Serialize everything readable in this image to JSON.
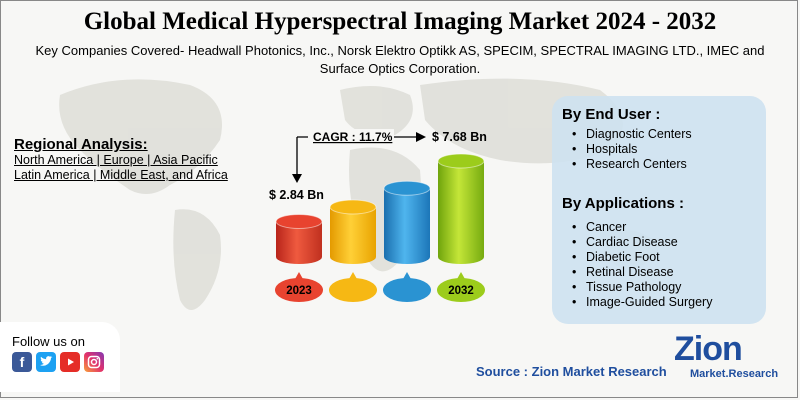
{
  "title": "Global Medical Hyperspectral Imaging Market 2024 - 2032",
  "subtitle": "Key Companies Covered- Headwall Photonics, Inc., Norsk Elektro Optikk AS, SPECIM, SPECTRAL IMAGING LTD., IMEC and Surface Optics Corporation.",
  "regional": {
    "title": "Regional Analysis:",
    "lines": [
      "North America | Europe | Asia Pacific",
      "Latin America | Middle East, and Africa"
    ]
  },
  "chart_data": {
    "type": "bar",
    "categories": [
      "2023",
      "",
      "",
      "2032"
    ],
    "values": [
      2.84,
      4.0,
      5.5,
      7.68
    ],
    "value_labels": [
      "$ 2.84 Bn",
      "",
      "",
      "$ 7.68 Bn"
    ],
    "cagr_label": "CAGR : 11.7%",
    "colors": [
      "#e8432f",
      "#f6b814",
      "#2a93d2",
      "#9ccc1b"
    ]
  },
  "end_user": {
    "title": "By End User :",
    "items": [
      "Diagnostic Centers",
      "Hospitals",
      "Research Centers"
    ]
  },
  "applications": {
    "title": "By Applications :",
    "items": [
      "Cancer",
      "Cardiac Disease",
      "Diabetic Foot",
      "Retinal Disease",
      "Tissue Pathology",
      "Image-Guided Surgery"
    ]
  },
  "follow": {
    "label": "Follow us on",
    "icons": [
      "facebook-icon",
      "twitter-icon",
      "youtube-icon",
      "instagram-icon"
    ]
  },
  "source": "Source : Zion Market Research",
  "logo": {
    "name": "Zion",
    "tagline": "Market.Research"
  }
}
